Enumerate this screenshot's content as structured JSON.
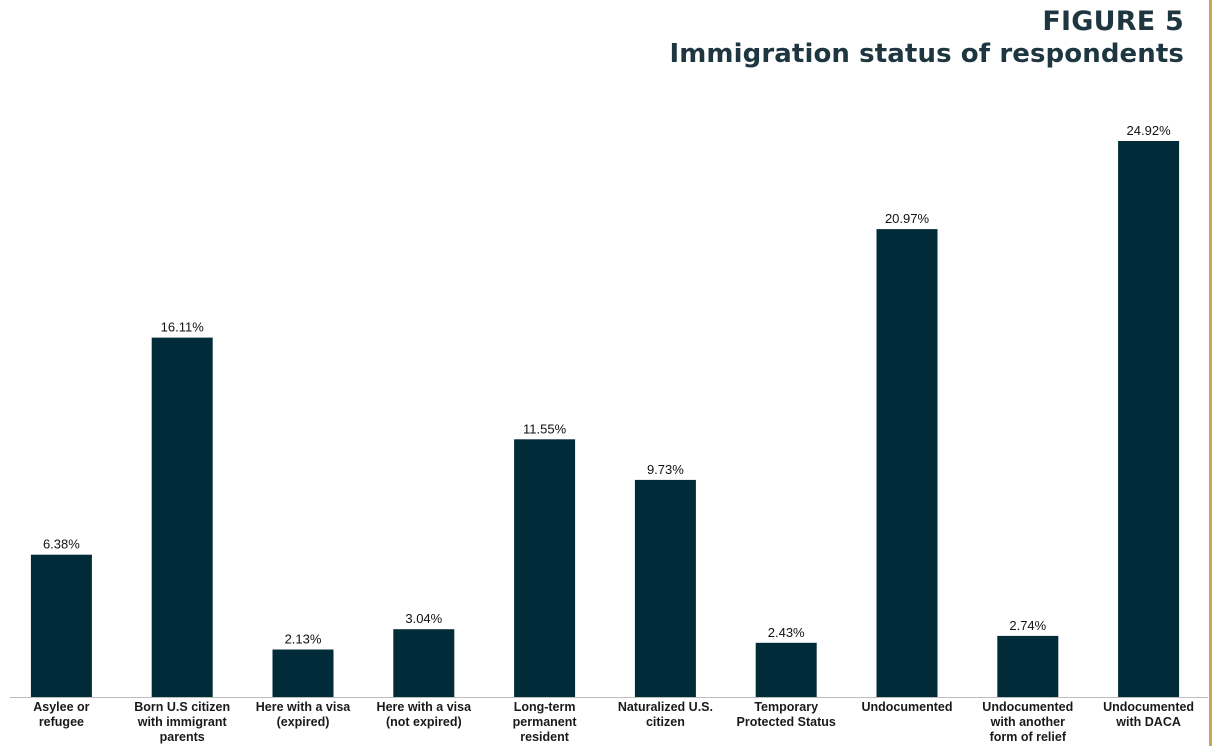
{
  "figure": {
    "label": "FIGURE 5",
    "title": "Immigration status of respondents"
  },
  "colors": {
    "bar": "#022b3a",
    "title": "#1e3640",
    "edge_accent": "#c9a45a"
  },
  "chart_data": {
    "type": "bar",
    "title": "Immigration status of respondents",
    "xlabel": "",
    "ylabel": "",
    "unit": "%",
    "ylim": [
      0,
      25
    ],
    "grid": false,
    "categories": [
      [
        "Asylee or",
        "refugee"
      ],
      [
        "Born U.S citizen",
        "with immigrant",
        "parents"
      ],
      [
        "Here with a visa",
        "(expired)"
      ],
      [
        "Here with a visa",
        "(not expired)"
      ],
      [
        "Long-term",
        "permanent",
        "resident"
      ],
      [
        "Naturalized U.S.",
        "citizen"
      ],
      [
        "Temporary",
        "Protected Status"
      ],
      [
        "Undocumented"
      ],
      [
        "Undocumented",
        "with another",
        "form of relief"
      ],
      [
        "Undocumented",
        "with DACA"
      ]
    ],
    "values": [
      6.38,
      16.11,
      2.13,
      3.04,
      11.55,
      9.73,
      2.43,
      20.97,
      2.74,
      24.92
    ],
    "value_labels": [
      "6.38%",
      "16.11%",
      "2.13%",
      "3.04%",
      "11.55%",
      "9.73%",
      "2.43%",
      "20.97%",
      "2.74%",
      "24.92%"
    ]
  }
}
